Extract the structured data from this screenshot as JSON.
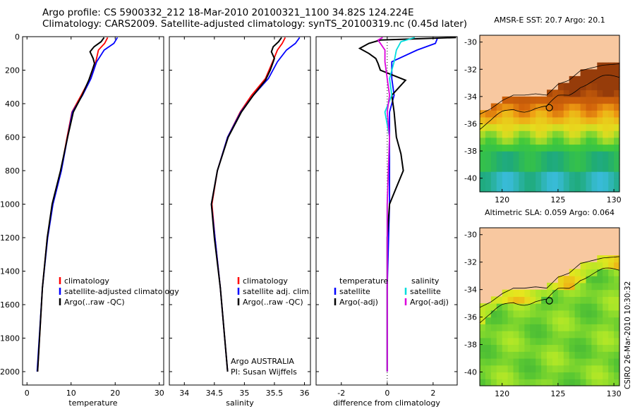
{
  "header": {
    "line1": "Argo profile: CS 5900332_212 18-Mar-2010 20100321_1100 34.82S 124.224E",
    "line2": "Climatology: CARS2009. Satellite-adjusted climatology: synTS_20100319.nc (0.45d later)"
  },
  "chart_data": [
    {
      "type": "line",
      "id": "temperature",
      "xlabel": "temperature",
      "xlim": [
        -1,
        31
      ],
      "ylim": [
        2080,
        0
      ],
      "xticks": [
        "0",
        "10",
        "20",
        "30"
      ],
      "yticks": [
        "0",
        "200",
        "400",
        "600",
        "800",
        "1000",
        "1200",
        "1400",
        "1600",
        "1800",
        "2000"
      ],
      "legend": [
        "climatology",
        "satellite-adjusted climatology",
        "Argo(..raw -QC)"
      ],
      "series": [
        {
          "name": "climatology",
          "color": "#ff0000",
          "depth": [
            5,
            40,
            80,
            150,
            250,
            350,
            450,
            600,
            800,
            1000,
            1200,
            1500,
            2000
          ],
          "values": [
            18.3,
            17.6,
            16.2,
            15.6,
            14.3,
            12.3,
            10.2,
            9.1,
            7.7,
            5.8,
            4.6,
            3.5,
            2.4
          ]
        },
        {
          "name": "satellite-adjusted climatology",
          "color": "#0000ff",
          "depth": [
            5,
            40,
            80,
            150,
            250,
            350,
            450,
            600,
            800,
            1000,
            1200,
            1500,
            2000
          ],
          "values": [
            20.5,
            19.7,
            17.5,
            15.8,
            14.5,
            12.6,
            10.3,
            9.2,
            7.8,
            5.9,
            4.7,
            3.5,
            2.3
          ]
        },
        {
          "name": "Argo(..raw -QC)",
          "color": "#000000",
          "depth": [
            5,
            30,
            60,
            90,
            130,
            160,
            200,
            260,
            350,
            450,
            600,
            800,
            1000,
            1200,
            1500,
            2000
          ],
          "values": [
            17.5,
            16.8,
            15.2,
            14.3,
            15.0,
            15.3,
            14.8,
            14.0,
            12.5,
            10.5,
            9.2,
            7.6,
            5.7,
            4.6,
            3.5,
            2.4
          ]
        }
      ]
    },
    {
      "type": "line",
      "id": "salinity",
      "xlabel": "salinity",
      "xlim": [
        33.75,
        36.1
      ],
      "ylim": [
        2080,
        0
      ],
      "xticks": [
        "34",
        "34.5",
        "35",
        "35.5",
        "36"
      ],
      "legend": [
        "climatology",
        "satellite adj. clim.",
        "Argo(..raw -QC)"
      ],
      "annotations": [
        "Argo AUSTRALIA",
        "PI: Susan Wijffels"
      ],
      "series": [
        {
          "name": "climatology",
          "color": "#ff0000",
          "depth": [
            5,
            40,
            80,
            150,
            250,
            350,
            450,
            600,
            800,
            1000,
            1200,
            1500,
            2000
          ],
          "values": [
            35.68,
            35.63,
            35.55,
            35.47,
            35.35,
            35.12,
            34.93,
            34.72,
            34.55,
            34.46,
            34.51,
            34.6,
            34.72
          ]
        },
        {
          "name": "satellite adj. clim.",
          "color": "#0000ff",
          "depth": [
            5,
            40,
            80,
            150,
            250,
            350,
            450,
            600,
            800,
            1000,
            1200,
            1500,
            2000
          ],
          "values": [
            35.92,
            35.85,
            35.7,
            35.55,
            35.4,
            35.15,
            34.94,
            34.72,
            34.55,
            34.45,
            34.51,
            34.6,
            34.72
          ]
        },
        {
          "name": "Argo(..raw -QC)",
          "color": "#000000",
          "depth": [
            5,
            30,
            60,
            90,
            130,
            160,
            200,
            260,
            350,
            450,
            600,
            800,
            1000,
            1200,
            1500,
            2000
          ],
          "values": [
            35.62,
            35.57,
            35.48,
            35.45,
            35.5,
            35.47,
            35.43,
            35.35,
            35.15,
            34.95,
            34.73,
            34.55,
            34.45,
            34.5,
            34.6,
            34.72
          ]
        }
      ]
    },
    {
      "type": "line",
      "id": "difference",
      "xlabel": "difference from climatology",
      "xlim": [
        -3.1,
        3.05
      ],
      "ylim": [
        2080,
        0
      ],
      "xticks": [
        "-2",
        "0",
        "2"
      ],
      "legend_groups": {
        "temperature": [
          "temperature",
          "satellite",
          "Argo(-adj)"
        ],
        "salinity": [
          "salinity",
          "satellite",
          "Argo(-adj)"
        ]
      },
      "series": [
        {
          "name": "temperature satellite",
          "color": "#0000ff",
          "depth": [
            5,
            40,
            80,
            150,
            250,
            350,
            450,
            600,
            800,
            1000,
            1500,
            2000
          ],
          "values": [
            2.2,
            2.1,
            1.3,
            0.2,
            0.2,
            0.3,
            0.1,
            0.1,
            0.1,
            0.1,
            0,
            0
          ]
        },
        {
          "name": "temperature Argo(-adj)",
          "color": "#000000",
          "depth": [
            5,
            20,
            40,
            70,
            100,
            130,
            160,
            200,
            260,
            350,
            450,
            600,
            700,
            800,
            900,
            1000,
            1200,
            1500,
            2000
          ],
          "values": [
            3.0,
            -0.3,
            -0.8,
            -1.2,
            -0.8,
            -0.5,
            -0.4,
            -0.3,
            0.8,
            0.2,
            0.3,
            0.4,
            0.6,
            0.7,
            0.4,
            0.1,
            0,
            0,
            0
          ]
        },
        {
          "name": "salinity satellite",
          "color": "#00dddd",
          "depth": [
            5,
            30,
            80,
            150,
            250,
            350,
            450,
            600,
            800,
            1000,
            1500,
            2000
          ],
          "values": [
            1.2,
            0.6,
            0.4,
            0.3,
            0.1,
            0.2,
            -0.1,
            0.1,
            0.05,
            0,
            0,
            0
          ]
        },
        {
          "name": "salinity Argo(-adj)",
          "color": "#dd00dd",
          "depth": [
            5,
            20,
            40,
            80,
            150,
            250,
            350,
            450,
            600,
            800,
            1000,
            1500,
            2000
          ],
          "values": [
            -0.2,
            -0.4,
            -0.3,
            -0.1,
            -0.1,
            0,
            0.1,
            0,
            0.1,
            0.05,
            0,
            0,
            0
          ]
        }
      ]
    },
    {
      "type": "heatmap",
      "id": "sst-map",
      "title": "AMSR-E SST: 20.7 Argo: 20.1",
      "xlim": [
        118,
        130.5
      ],
      "ylim": [
        -41,
        -29.5
      ],
      "xticks": [
        "120",
        "125",
        "130"
      ],
      "yticks": [
        "-30",
        "-32",
        "-34",
        "-36",
        "-38",
        "-40"
      ],
      "argo_lon": 124.224,
      "argo_lat": -34.82
    },
    {
      "type": "heatmap",
      "id": "sla-map",
      "title": "Altimetric SLA: 0.059 Argo: 0.064",
      "xlim": [
        118,
        130.5
      ],
      "ylim": [
        -41,
        -29.5
      ],
      "xticks": [
        "120",
        "125",
        "130"
      ],
      "yticks": [
        "-30",
        "-32",
        "-34",
        "-36",
        "-38",
        "-40"
      ],
      "argo_lon": 124.224,
      "argo_lat": -34.82
    }
  ],
  "footer": {
    "credit": "CSIRO 26-Mar-2010 10:30:32"
  }
}
